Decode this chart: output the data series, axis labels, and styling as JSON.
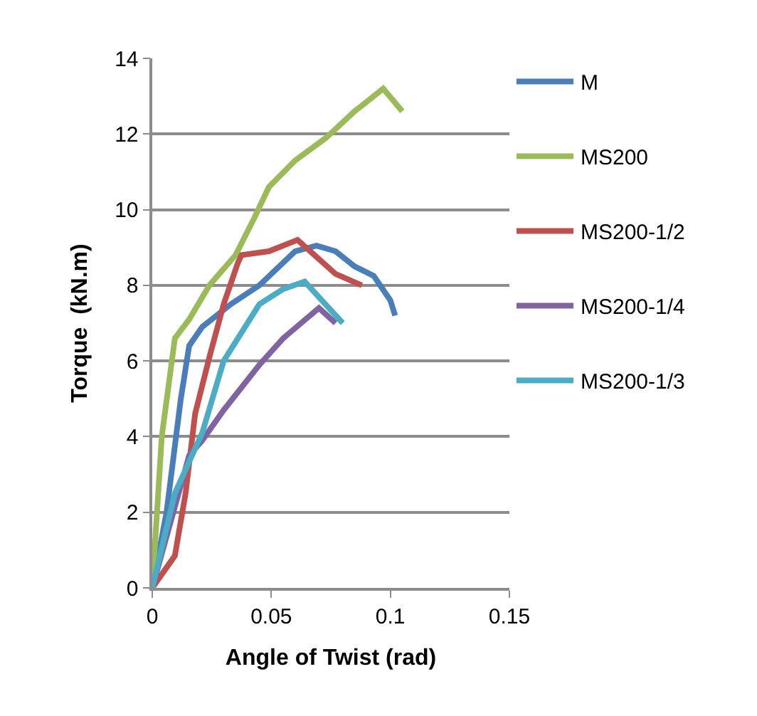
{
  "chart_data": {
    "type": "line",
    "xlabel": "Angle of Twist (rad)",
    "ylabel": "Torque  (kN.m)",
    "xlim": [
      0,
      0.15
    ],
    "xticks": [
      0,
      0.05,
      0.1,
      0.15
    ],
    "ylim": [
      0,
      14
    ],
    "yticks": [
      0,
      2,
      4,
      6,
      8,
      10,
      12,
      14
    ],
    "grid": "y",
    "legend": "right",
    "marker": "none",
    "line_style": "solid",
    "series": [
      {
        "name": "M",
        "color": "#4a7ebb",
        "x": [
          0,
          0.006,
          0.012,
          0.0155,
          0.021,
          0.033,
          0.045,
          0.06,
          0.069,
          0.077,
          0.085,
          0.093,
          0.1,
          0.102
        ],
        "values": [
          0,
          2.0,
          5.0,
          6.4,
          6.9,
          7.5,
          8.0,
          8.9,
          9.05,
          8.9,
          8.5,
          8.25,
          7.6,
          7.2
        ]
      },
      {
        "name": "MS200",
        "color": "#9bbb59",
        "x": [
          0,
          0.004,
          0.0095,
          0.0155,
          0.024,
          0.035,
          0.043,
          0.049,
          0.06,
          0.073,
          0.085,
          0.097,
          0.105
        ],
        "values": [
          0,
          4.0,
          6.6,
          7.1,
          8.0,
          8.8,
          9.8,
          10.6,
          11.3,
          11.9,
          12.6,
          13.2,
          12.6
        ]
      },
      {
        "name": "MS200-1/2",
        "color": "#c0504d",
        "x": [
          0,
          0.0095,
          0.014,
          0.018,
          0.024,
          0.03,
          0.036,
          0.0375,
          0.049,
          0.061,
          0.069,
          0.077,
          0.088
        ],
        "values": [
          0,
          0.85,
          2.5,
          4.6,
          6.1,
          7.5,
          8.6,
          8.8,
          8.9,
          9.2,
          8.75,
          8.3,
          8.0
        ]
      },
      {
        "name": "MS200-1/4",
        "color": "#8064a2",
        "x": [
          0,
          0.0155,
          0.021,
          0.03,
          0.045,
          0.055,
          0.07,
          0.077
        ],
        "values": [
          0,
          3.5,
          3.9,
          4.7,
          5.9,
          6.6,
          7.4,
          7.0
        ]
      },
      {
        "name": "MS200-1/3",
        "color": "#4bacc6",
        "x": [
          0,
          0.0095,
          0.021,
          0.03,
          0.045,
          0.055,
          0.064,
          0.08
        ],
        "values": [
          0,
          2.5,
          4.1,
          6.0,
          7.5,
          7.9,
          8.1,
          7.0
        ]
      }
    ]
  }
}
